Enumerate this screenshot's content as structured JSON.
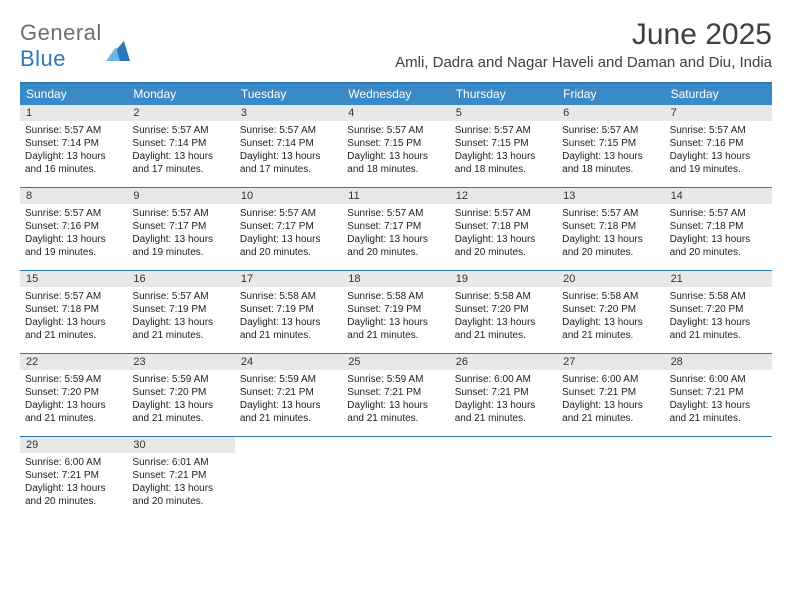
{
  "brand": {
    "part1": "General",
    "part2": "Blue"
  },
  "title": "June 2025",
  "location": "Amli, Dadra and Nagar Haveli and Daman and Diu, India",
  "colors": {
    "header_bg": "#3a8ac8",
    "header_border": "#2f78b7",
    "daynum_bg": "#e8e8e8",
    "text": "#202020",
    "logo_gray": "#6f6f6f",
    "logo_blue": "#2f78b7",
    "page_bg": "#ffffff"
  },
  "dow": [
    "Sunday",
    "Monday",
    "Tuesday",
    "Wednesday",
    "Thursday",
    "Friday",
    "Saturday"
  ],
  "weeks": [
    [
      {
        "n": "1",
        "sr": "Sunrise: 5:57 AM",
        "ss": "Sunset: 7:14 PM",
        "d1": "Daylight: 13 hours",
        "d2": "and 16 minutes."
      },
      {
        "n": "2",
        "sr": "Sunrise: 5:57 AM",
        "ss": "Sunset: 7:14 PM",
        "d1": "Daylight: 13 hours",
        "d2": "and 17 minutes."
      },
      {
        "n": "3",
        "sr": "Sunrise: 5:57 AM",
        "ss": "Sunset: 7:14 PM",
        "d1": "Daylight: 13 hours",
        "d2": "and 17 minutes."
      },
      {
        "n": "4",
        "sr": "Sunrise: 5:57 AM",
        "ss": "Sunset: 7:15 PM",
        "d1": "Daylight: 13 hours",
        "d2": "and 18 minutes."
      },
      {
        "n": "5",
        "sr": "Sunrise: 5:57 AM",
        "ss": "Sunset: 7:15 PM",
        "d1": "Daylight: 13 hours",
        "d2": "and 18 minutes."
      },
      {
        "n": "6",
        "sr": "Sunrise: 5:57 AM",
        "ss": "Sunset: 7:15 PM",
        "d1": "Daylight: 13 hours",
        "d2": "and 18 minutes."
      },
      {
        "n": "7",
        "sr": "Sunrise: 5:57 AM",
        "ss": "Sunset: 7:16 PM",
        "d1": "Daylight: 13 hours",
        "d2": "and 19 minutes."
      }
    ],
    [
      {
        "n": "8",
        "sr": "Sunrise: 5:57 AM",
        "ss": "Sunset: 7:16 PM",
        "d1": "Daylight: 13 hours",
        "d2": "and 19 minutes."
      },
      {
        "n": "9",
        "sr": "Sunrise: 5:57 AM",
        "ss": "Sunset: 7:17 PM",
        "d1": "Daylight: 13 hours",
        "d2": "and 19 minutes."
      },
      {
        "n": "10",
        "sr": "Sunrise: 5:57 AM",
        "ss": "Sunset: 7:17 PM",
        "d1": "Daylight: 13 hours",
        "d2": "and 20 minutes."
      },
      {
        "n": "11",
        "sr": "Sunrise: 5:57 AM",
        "ss": "Sunset: 7:17 PM",
        "d1": "Daylight: 13 hours",
        "d2": "and 20 minutes."
      },
      {
        "n": "12",
        "sr": "Sunrise: 5:57 AM",
        "ss": "Sunset: 7:18 PM",
        "d1": "Daylight: 13 hours",
        "d2": "and 20 minutes."
      },
      {
        "n": "13",
        "sr": "Sunrise: 5:57 AM",
        "ss": "Sunset: 7:18 PM",
        "d1": "Daylight: 13 hours",
        "d2": "and 20 minutes."
      },
      {
        "n": "14",
        "sr": "Sunrise: 5:57 AM",
        "ss": "Sunset: 7:18 PM",
        "d1": "Daylight: 13 hours",
        "d2": "and 20 minutes."
      }
    ],
    [
      {
        "n": "15",
        "sr": "Sunrise: 5:57 AM",
        "ss": "Sunset: 7:18 PM",
        "d1": "Daylight: 13 hours",
        "d2": "and 21 minutes."
      },
      {
        "n": "16",
        "sr": "Sunrise: 5:57 AM",
        "ss": "Sunset: 7:19 PM",
        "d1": "Daylight: 13 hours",
        "d2": "and 21 minutes."
      },
      {
        "n": "17",
        "sr": "Sunrise: 5:58 AM",
        "ss": "Sunset: 7:19 PM",
        "d1": "Daylight: 13 hours",
        "d2": "and 21 minutes."
      },
      {
        "n": "18",
        "sr": "Sunrise: 5:58 AM",
        "ss": "Sunset: 7:19 PM",
        "d1": "Daylight: 13 hours",
        "d2": "and 21 minutes."
      },
      {
        "n": "19",
        "sr": "Sunrise: 5:58 AM",
        "ss": "Sunset: 7:20 PM",
        "d1": "Daylight: 13 hours",
        "d2": "and 21 minutes."
      },
      {
        "n": "20",
        "sr": "Sunrise: 5:58 AM",
        "ss": "Sunset: 7:20 PM",
        "d1": "Daylight: 13 hours",
        "d2": "and 21 minutes."
      },
      {
        "n": "21",
        "sr": "Sunrise: 5:58 AM",
        "ss": "Sunset: 7:20 PM",
        "d1": "Daylight: 13 hours",
        "d2": "and 21 minutes."
      }
    ],
    [
      {
        "n": "22",
        "sr": "Sunrise: 5:59 AM",
        "ss": "Sunset: 7:20 PM",
        "d1": "Daylight: 13 hours",
        "d2": "and 21 minutes."
      },
      {
        "n": "23",
        "sr": "Sunrise: 5:59 AM",
        "ss": "Sunset: 7:20 PM",
        "d1": "Daylight: 13 hours",
        "d2": "and 21 minutes."
      },
      {
        "n": "24",
        "sr": "Sunrise: 5:59 AM",
        "ss": "Sunset: 7:21 PM",
        "d1": "Daylight: 13 hours",
        "d2": "and 21 minutes."
      },
      {
        "n": "25",
        "sr": "Sunrise: 5:59 AM",
        "ss": "Sunset: 7:21 PM",
        "d1": "Daylight: 13 hours",
        "d2": "and 21 minutes."
      },
      {
        "n": "26",
        "sr": "Sunrise: 6:00 AM",
        "ss": "Sunset: 7:21 PM",
        "d1": "Daylight: 13 hours",
        "d2": "and 21 minutes."
      },
      {
        "n": "27",
        "sr": "Sunrise: 6:00 AM",
        "ss": "Sunset: 7:21 PM",
        "d1": "Daylight: 13 hours",
        "d2": "and 21 minutes."
      },
      {
        "n": "28",
        "sr": "Sunrise: 6:00 AM",
        "ss": "Sunset: 7:21 PM",
        "d1": "Daylight: 13 hours",
        "d2": "and 21 minutes."
      }
    ],
    [
      {
        "n": "29",
        "sr": "Sunrise: 6:00 AM",
        "ss": "Sunset: 7:21 PM",
        "d1": "Daylight: 13 hours",
        "d2": "and 20 minutes."
      },
      {
        "n": "30",
        "sr": "Sunrise: 6:01 AM",
        "ss": "Sunset: 7:21 PM",
        "d1": "Daylight: 13 hours",
        "d2": "and 20 minutes."
      },
      null,
      null,
      null,
      null,
      null
    ]
  ]
}
